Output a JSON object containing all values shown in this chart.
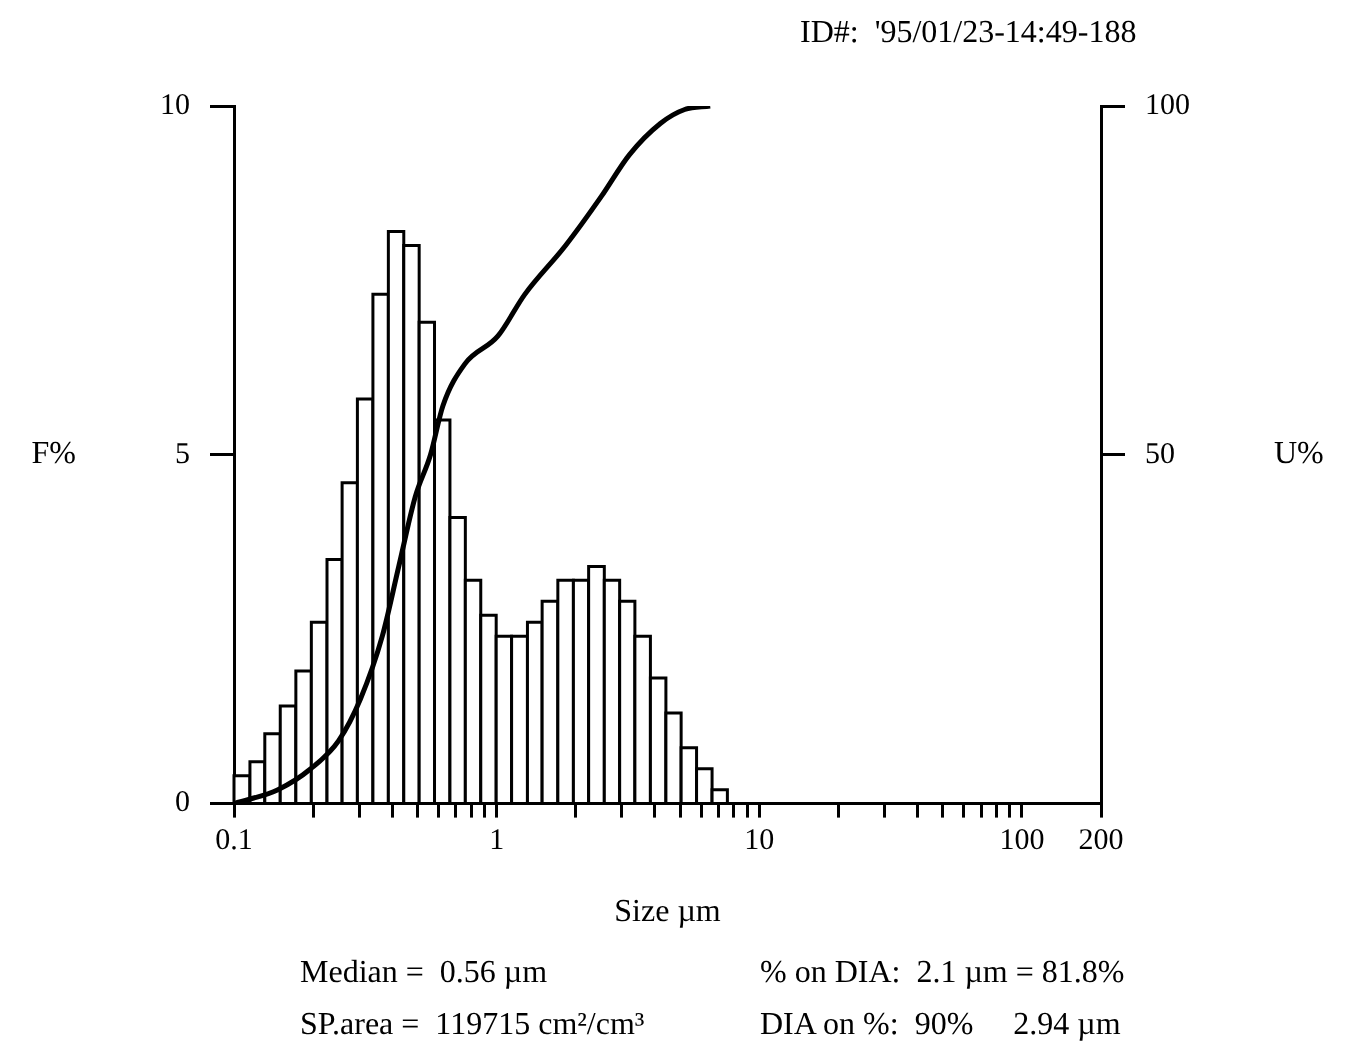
{
  "chart_data": {
    "type": "histogram",
    "xlabel": "Size µm",
    "ylabel": "F%",
    "y2label": "U%",
    "log": "x",
    "grid": false,
    "legend": false,
    "xlim": [
      0.1,
      200
    ],
    "xticks": [
      0.1,
      {
        "value": 0.2,
        "label": null
      },
      {
        "value": 0.3,
        "label": null
      },
      {
        "value": 0.4,
        "label": null
      },
      {
        "value": 0.5,
        "label": null
      },
      {
        "value": 0.6,
        "label": null
      },
      {
        "value": 0.7,
        "label": null
      },
      {
        "value": 0.8,
        "label": null
      },
      {
        "value": 0.9,
        "label": null
      },
      1,
      {
        "value": 2,
        "label": null
      },
      {
        "value": 3,
        "label": null
      },
      {
        "value": 4,
        "label": null
      },
      {
        "value": 5,
        "label": null
      },
      {
        "value": 6,
        "label": null
      },
      {
        "value": 7,
        "label": null
      },
      {
        "value": 8,
        "label": null
      },
      {
        "value": 9,
        "label": null
      },
      10,
      {
        "value": 20,
        "label": null
      },
      {
        "value": 30,
        "label": null
      },
      {
        "value": 40,
        "label": null
      },
      {
        "value": 50,
        "label": null
      },
      {
        "value": 60,
        "label": null
      },
      {
        "value": 70,
        "label": null
      },
      {
        "value": 80,
        "label": null
      },
      {
        "value": 90,
        "label": null
      },
      100,
      200
    ],
    "ylim": [
      0,
      10
    ],
    "yticks": [
      0,
      5,
      10
    ],
    "y2lim": [
      0,
      100
    ],
    "y2ticks": [
      50,
      100
    ],
    "series": [
      {
        "color": "#ffffff",
        "bins": [
          0.1,
          0.115,
          0.131,
          0.15,
          0.172,
          0.197,
          0.226,
          0.258,
          0.295,
          0.338,
          0.387,
          0.443,
          0.507,
          0.58,
          0.664,
          0.76,
          0.87,
          0.996,
          1.14,
          1.31,
          1.49,
          1.71,
          1.96,
          2.24,
          2.57,
          2.94,
          3.36,
          3.85,
          4.41,
          5.04,
          5.77,
          6.61,
          7.56
        ],
        "values": [
          0.4,
          0.6,
          1.0,
          1.4,
          1.9,
          2.6,
          3.5,
          4.6,
          5.8,
          7.3,
          8.2,
          8.0,
          6.9,
          5.5,
          4.1,
          3.2,
          2.7,
          2.4,
          2.4,
          2.6,
          2.9,
          3.2,
          3.2,
          3.4,
          3.2,
          2.9,
          2.4,
          1.8,
          1.3,
          0.8,
          0.5,
          0.2
        ]
      },
      {
        "type": "line",
        "axis": "y2",
        "color": "#000000",
        "marker": "none",
        "x": [
          0.1,
          0.147,
          0.196,
          0.25,
          0.303,
          0.367,
          0.424,
          0.49,
          0.56,
          0.624,
          0.756,
          1.01,
          1.28,
          1.83,
          2.5,
          3.2,
          4.2,
          5.2,
          6.5
        ],
        "values": [
          0,
          2,
          5,
          9,
          15,
          24,
          34,
          44,
          50,
          57,
          63,
          67,
          73,
          80,
          87,
          93,
          97.5,
          99.5,
          100
        ]
      }
    ],
    "annotations": [
      "ID#:  '95/01/23-14:49-188",
      "Median =  0.56 µm",
      "% on DIA:  2.1 µm = 81.8%",
      "SP.area =  119715 cm²/cm³",
      "DIA on %:  90%     2.94 µm"
    ]
  }
}
